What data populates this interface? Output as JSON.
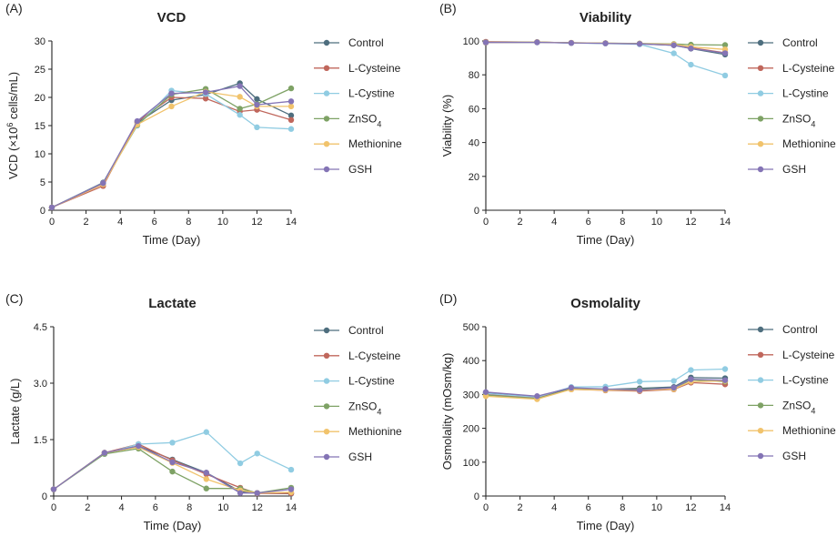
{
  "colors": {
    "Control": "#4e6e7e",
    "L-Cysteine": "#c0675c",
    "L-Cystine": "#90cce2",
    "ZnSO4": "#7ea265",
    "Methionine": "#f1c36c",
    "GSH": "#8474b5"
  },
  "chart_data": [
    {
      "panel": "(A)",
      "type": "line",
      "title": "VCD",
      "xlabel": "Time (Day)",
      "ylabel": {
        "pre": "VCD (×10",
        "sup": "6",
        "post": " cells/mL)"
      },
      "xlim": [
        0,
        14
      ],
      "ylim": [
        0,
        30
      ],
      "xticks": [
        0,
        2,
        4,
        6,
        8,
        10,
        12,
        14
      ],
      "yticks": [
        0,
        5,
        10,
        15,
        20,
        25,
        30
      ],
      "series": [
        {
          "name": "Control",
          "legend": {
            "base": "Control",
            "sub": ""
          },
          "x": [
            0,
            3,
            5,
            7,
            9,
            11,
            12,
            14
          ],
          "values": [
            0.5,
            4.9,
            15.5,
            19.5,
            20.5,
            22.5,
            19.7,
            16.8
          ]
        },
        {
          "name": "L-Cysteine",
          "legend": {
            "base": "L-Cysteine",
            "sub": ""
          },
          "x": [
            0,
            3,
            5,
            7,
            9,
            11,
            12,
            14
          ],
          "values": [
            0.5,
            4.3,
            15.7,
            20.0,
            19.8,
            17.5,
            17.8,
            16.0
          ]
        },
        {
          "name": "L-Cystine",
          "legend": {
            "base": "L-Cystine",
            "sub": ""
          },
          "x": [
            0,
            3,
            5,
            7,
            9,
            11,
            12,
            14
          ],
          "values": [
            0.5,
            4.8,
            15.0,
            21.2,
            20.6,
            16.9,
            14.7,
            14.4
          ]
        },
        {
          "name": "ZnSO4",
          "legend": {
            "base": "ZnSO",
            "sub": "4"
          },
          "x": [
            0,
            3,
            5,
            7,
            9,
            11,
            12,
            14
          ],
          "values": [
            0.5,
            4.7,
            15.1,
            20.5,
            21.5,
            18.0,
            18.8,
            21.6
          ]
        },
        {
          "name": "Methionine",
          "legend": {
            "base": "Methionine",
            "sub": ""
          },
          "x": [
            0,
            3,
            5,
            7,
            9,
            11,
            12,
            14
          ],
          "values": [
            0.5,
            4.6,
            15.2,
            18.4,
            21.0,
            20.1,
            18.4,
            18.4
          ]
        },
        {
          "name": "GSH",
          "legend": {
            "base": "GSH",
            "sub": ""
          },
          "x": [
            0,
            3,
            5,
            7,
            9,
            11,
            12,
            14
          ],
          "values": [
            0.5,
            4.8,
            15.8,
            20.7,
            20.9,
            22.0,
            18.7,
            19.3
          ]
        }
      ]
    },
    {
      "panel": "(B)",
      "type": "line",
      "title": "Viability",
      "xlabel": "Time (Day)",
      "ylabel": {
        "pre": "Viability (%)",
        "sup": "",
        "post": ""
      },
      "xlim": [
        0,
        14
      ],
      "ylim": [
        0,
        100
      ],
      "xticks": [
        0,
        2,
        4,
        6,
        8,
        10,
        12,
        14
      ],
      "yticks": [
        0,
        20,
        40,
        60,
        80,
        100
      ],
      "series": [
        {
          "name": "Control",
          "legend": {
            "base": "Control",
            "sub": ""
          },
          "x": [
            0,
            3,
            5,
            7,
            9,
            11,
            12,
            14
          ],
          "values": [
            99.0,
            99.3,
            98.8,
            98.6,
            98.3,
            97.5,
            95.5,
            92.0
          ]
        },
        {
          "name": "L-Cysteine",
          "legend": {
            "base": "L-Cysteine",
            "sub": ""
          },
          "x": [
            0,
            3,
            5,
            7,
            9,
            11,
            12,
            14
          ],
          "values": [
            99.5,
            99.3,
            98.9,
            98.6,
            98.4,
            97.6,
            96.0,
            93.0
          ]
        },
        {
          "name": "L-Cystine",
          "legend": {
            "base": "L-Cystine",
            "sub": ""
          },
          "x": [
            0,
            3,
            5,
            7,
            9,
            11,
            12,
            14
          ],
          "values": [
            99.0,
            99.2,
            98.8,
            98.5,
            98.0,
            92.7,
            86.0,
            79.6
          ]
        },
        {
          "name": "ZnSO4",
          "legend": {
            "base": "ZnSO",
            "sub": "4"
          },
          "x": [
            0,
            3,
            5,
            7,
            9,
            11,
            12,
            14
          ],
          "values": [
            99.2,
            99.3,
            98.9,
            98.7,
            98.5,
            98.2,
            97.8,
            97.6
          ]
        },
        {
          "name": "Methionine",
          "legend": {
            "base": "Methionine",
            "sub": ""
          },
          "x": [
            0,
            3,
            5,
            7,
            9,
            11,
            12,
            14
          ],
          "values": [
            99.0,
            99.3,
            98.9,
            98.7,
            98.4,
            98.0,
            96.5,
            95.0
          ]
        },
        {
          "name": "GSH",
          "legend": {
            "base": "GSH",
            "sub": ""
          },
          "x": [
            0,
            3,
            5,
            7,
            9,
            11,
            12,
            14
          ],
          "values": [
            99.1,
            99.2,
            98.8,
            98.6,
            98.3,
            97.5,
            95.6,
            92.8
          ]
        }
      ]
    },
    {
      "panel": "(C)",
      "type": "line",
      "title": "Lactate",
      "xlabel": "Time (Day)",
      "ylabel": {
        "pre": "Lactate (g/L)",
        "sup": "",
        "post": ""
      },
      "xlim": [
        0,
        14
      ],
      "ylim": [
        0,
        4.5
      ],
      "xticks": [
        0,
        2,
        4,
        6,
        8,
        10,
        12,
        14
      ],
      "yticks": [
        0,
        1.5,
        3.0,
        4.5
      ],
      "ytick_labels": [
        "0",
        "1.5",
        "3.0",
        "4.5"
      ],
      "series": [
        {
          "name": "Control",
          "legend": {
            "base": "Control",
            "sub": ""
          },
          "x": [
            0,
            3,
            5,
            7,
            9,
            11,
            12,
            14
          ],
          "values": [
            0.18,
            1.15,
            1.33,
            0.97,
            0.62,
            0.12,
            0.08,
            0.06
          ]
        },
        {
          "name": "L-Cysteine",
          "legend": {
            "base": "L-Cysteine",
            "sub": ""
          },
          "x": [
            0,
            3,
            5,
            7,
            9,
            11,
            12,
            14
          ],
          "values": [
            0.18,
            1.15,
            1.38,
            0.95,
            0.58,
            0.22,
            0.07,
            0.07
          ]
        },
        {
          "name": "L-Cystine",
          "legend": {
            "base": "L-Cystine",
            "sub": ""
          },
          "x": [
            0,
            3,
            5,
            7,
            9,
            11,
            12,
            14
          ],
          "values": [
            0.18,
            1.12,
            1.38,
            1.42,
            1.7,
            0.87,
            1.13,
            0.7
          ]
        },
        {
          "name": "ZnSO4",
          "legend": {
            "base": "ZnSO",
            "sub": "4"
          },
          "x": [
            0,
            3,
            5,
            7,
            9,
            11,
            12,
            14
          ],
          "values": [
            0.18,
            1.12,
            1.26,
            0.65,
            0.2,
            0.2,
            0.08,
            0.22
          ]
        },
        {
          "name": "Methionine",
          "legend": {
            "base": "Methionine",
            "sub": ""
          },
          "x": [
            0,
            3,
            5,
            7,
            9,
            11,
            12,
            14
          ],
          "values": [
            0.18,
            1.15,
            1.3,
            0.88,
            0.45,
            0.15,
            0.08,
            0.1
          ]
        },
        {
          "name": "GSH",
          "legend": {
            "base": "GSH",
            "sub": ""
          },
          "x": [
            0,
            3,
            5,
            7,
            9,
            11,
            12,
            14
          ],
          "values": [
            0.18,
            1.15,
            1.33,
            0.9,
            0.62,
            0.08,
            0.08,
            0.18
          ]
        }
      ]
    },
    {
      "panel": "(D)",
      "type": "line",
      "title": "Osmolality",
      "xlabel": "Time (Day)",
      "ylabel": {
        "pre": "Osmolality (mOsm/kg)",
        "sup": "",
        "post": ""
      },
      "xlim": [
        0,
        14
      ],
      "ylim": [
        0,
        500
      ],
      "xticks": [
        0,
        2,
        4,
        6,
        8,
        10,
        12,
        14
      ],
      "yticks": [
        0,
        100,
        200,
        300,
        400,
        500
      ],
      "series": [
        {
          "name": "Control",
          "legend": {
            "base": "Control",
            "sub": ""
          },
          "x": [
            0,
            3,
            5,
            7,
            9,
            11,
            12,
            14
          ],
          "values": [
            305,
            293,
            318,
            315,
            318,
            322,
            350,
            348
          ]
        },
        {
          "name": "L-Cysteine",
          "legend": {
            "base": "L-Cysteine",
            "sub": ""
          },
          "x": [
            0,
            3,
            5,
            7,
            9,
            11,
            12,
            14
          ],
          "values": [
            300,
            290,
            315,
            312,
            310,
            315,
            335,
            330
          ]
        },
        {
          "name": "L-Cystine",
          "legend": {
            "base": "L-Cystine",
            "sub": ""
          },
          "x": [
            0,
            3,
            5,
            7,
            9,
            11,
            12,
            14
          ],
          "values": [
            303,
            292,
            322,
            323,
            338,
            340,
            372,
            375
          ]
        },
        {
          "name": "ZnSO4",
          "legend": {
            "base": "ZnSO",
            "sub": "4"
          },
          "x": [
            0,
            3,
            5,
            7,
            9,
            11,
            12,
            14
          ],
          "values": [
            298,
            288,
            316,
            314,
            315,
            318,
            343,
            338
          ]
        },
        {
          "name": "Methionine",
          "legend": {
            "base": "Methionine",
            "sub": ""
          },
          "x": [
            0,
            3,
            5,
            7,
            9,
            11,
            12,
            14
          ],
          "values": [
            295,
            286,
            315,
            313,
            312,
            316,
            338,
            340
          ]
        },
        {
          "name": "GSH",
          "legend": {
            "base": "GSH",
            "sub": ""
          },
          "x": [
            0,
            3,
            5,
            7,
            9,
            11,
            12,
            14
          ],
          "values": [
            307,
            295,
            320,
            316,
            313,
            320,
            345,
            342
          ]
        }
      ]
    }
  ]
}
